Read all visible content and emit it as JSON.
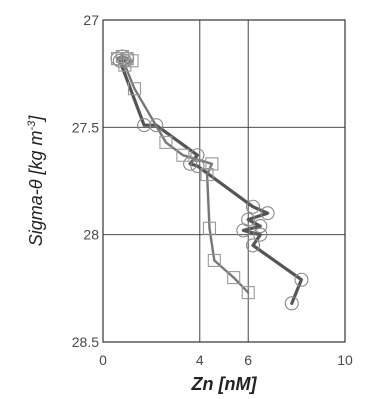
{
  "chart_data": {
    "type": "line",
    "title": "",
    "xlabel": "Zn [nM]",
    "ylabel_main": "Sigma-θ [kg m",
    "ylabel_sup": "-3",
    "ylabel_close": "]",
    "xlim": [
      0,
      10
    ],
    "ylim": [
      27,
      28.5
    ],
    "y_inverted": true,
    "grid": true,
    "x_ticks": [
      0,
      4,
      6,
      10
    ],
    "x_tick_labels": [
      "0",
      "4",
      "6",
      "10"
    ],
    "y_ticks": [
      27,
      27.5,
      28,
      28.5
    ],
    "y_tick_labels": [
      "27",
      "27.5",
      "28",
      "28.5"
    ],
    "series": [
      {
        "marker": "circle",
        "color": "#555555",
        "x": [
          0.6,
          0.8,
          1.0,
          0.9,
          0.7,
          1.7,
          2.2,
          3.9,
          3.6,
          3.9,
          6.2,
          6.8,
          6.0,
          6.5,
          5.8,
          6.5,
          6.2,
          8.2,
          7.8
        ],
        "y": [
          27.18,
          27.17,
          27.18,
          27.19,
          27.19,
          27.49,
          27.49,
          27.63,
          27.67,
          27.68,
          27.87,
          27.9,
          27.93,
          27.96,
          27.98,
          28.0,
          28.05,
          28.21,
          28.32
        ]
      },
      {
        "marker": "square",
        "color": "#777777",
        "x": [
          0.6,
          0.8,
          1.0,
          1.2,
          0.9,
          1.3,
          2.6,
          3.3,
          4.5,
          4.3,
          4.4,
          4.6,
          5.4,
          6.0
        ],
        "y": [
          27.18,
          27.17,
          27.18,
          27.19,
          27.21,
          27.32,
          27.57,
          27.63,
          27.67,
          27.72,
          27.97,
          28.12,
          28.2,
          28.27
        ]
      }
    ]
  }
}
